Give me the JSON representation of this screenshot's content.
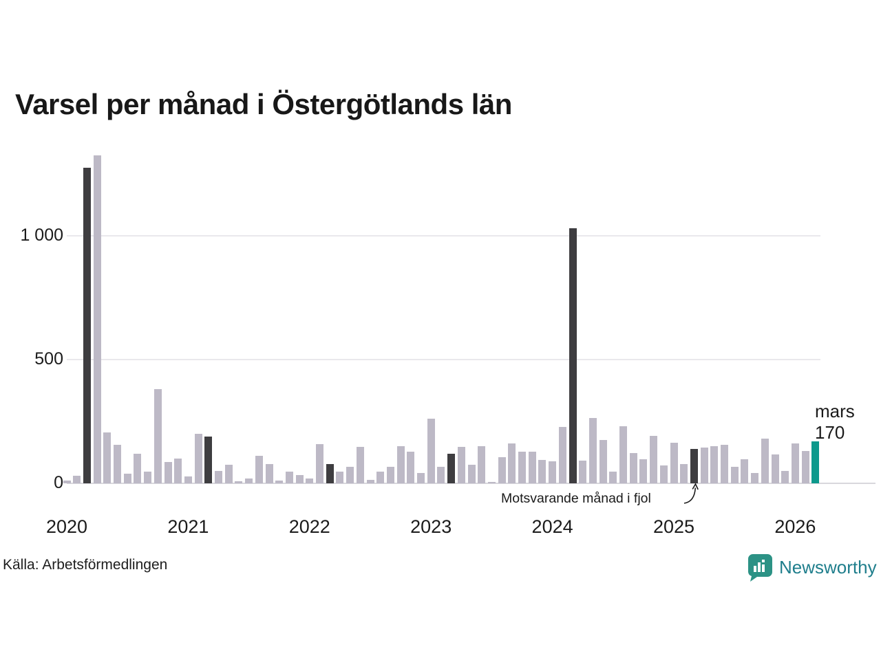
{
  "title": "Varsel per månad i Östergötlands län",
  "source": "Källa: Arbetsförmedlingen",
  "brand": {
    "name": "Newsworthy",
    "text_color": "#1f7e8c",
    "icon_color": "#2c9285",
    "icon": "bar-chart-bubble-icon"
  },
  "annotation": {
    "text": "Motsvarande månad i fjol"
  },
  "latest_label": {
    "month": "mars",
    "value": "170"
  },
  "colors": {
    "bar_default": "#bdb9c6",
    "bar_same_month_previous_years": "#3e3d40",
    "bar_latest": "#0d998c",
    "gridline": "#e9e8ec",
    "axis_line": "#d8d7dc",
    "text": "#1a1a1a"
  },
  "chart_data": {
    "type": "bar",
    "title": "Varsel per månad i Östergötlands län",
    "xlabel": "",
    "ylabel": "",
    "ylim": [
      0,
      1400
    ],
    "grid": "horizontal",
    "legend_position": "none",
    "yticks": [
      {
        "label": "0",
        "value": 0
      },
      {
        "label": "500",
        "value": 500
      },
      {
        "label": "1 000",
        "value": 1000
      }
    ],
    "year_labels": [
      "2020",
      "2021",
      "2022",
      "2023",
      "2024",
      "2025",
      "2026"
    ],
    "highlight_note": "dark bars = March of each year (same month in previous years); teal bar = latest month (mars 2026 = 170)",
    "months": [
      {
        "x": "2020-01",
        "v": 10,
        "kind": "normal"
      },
      {
        "x": "2020-02",
        "v": 30,
        "kind": "normal"
      },
      {
        "x": "2020-03",
        "v": 1275,
        "kind": "dark"
      },
      {
        "x": "2020-04",
        "v": 1325,
        "kind": "normal"
      },
      {
        "x": "2020-05",
        "v": 205,
        "kind": "normal"
      },
      {
        "x": "2020-06",
        "v": 155,
        "kind": "normal"
      },
      {
        "x": "2020-07",
        "v": 40,
        "kind": "normal"
      },
      {
        "x": "2020-08",
        "v": 120,
        "kind": "normal"
      },
      {
        "x": "2020-09",
        "v": 48,
        "kind": "normal"
      },
      {
        "x": "2020-10",
        "v": 380,
        "kind": "normal"
      },
      {
        "x": "2020-11",
        "v": 85,
        "kind": "normal"
      },
      {
        "x": "2020-12",
        "v": 100,
        "kind": "normal"
      },
      {
        "x": "2021-01",
        "v": 28,
        "kind": "normal"
      },
      {
        "x": "2021-02",
        "v": 200,
        "kind": "normal"
      },
      {
        "x": "2021-03",
        "v": 190,
        "kind": "dark"
      },
      {
        "x": "2021-04",
        "v": 50,
        "kind": "normal"
      },
      {
        "x": "2021-05",
        "v": 74,
        "kind": "normal"
      },
      {
        "x": "2021-06",
        "v": 8,
        "kind": "normal"
      },
      {
        "x": "2021-07",
        "v": 20,
        "kind": "normal"
      },
      {
        "x": "2021-08",
        "v": 112,
        "kind": "normal"
      },
      {
        "x": "2021-09",
        "v": 77,
        "kind": "normal"
      },
      {
        "x": "2021-10",
        "v": 12,
        "kind": "normal"
      },
      {
        "x": "2021-11",
        "v": 48,
        "kind": "normal"
      },
      {
        "x": "2021-12",
        "v": 34,
        "kind": "normal"
      },
      {
        "x": "2022-01",
        "v": 20,
        "kind": "normal"
      },
      {
        "x": "2022-02",
        "v": 158,
        "kind": "normal"
      },
      {
        "x": "2022-03",
        "v": 78,
        "kind": "dark"
      },
      {
        "x": "2022-04",
        "v": 48,
        "kind": "normal"
      },
      {
        "x": "2022-05",
        "v": 66,
        "kind": "normal"
      },
      {
        "x": "2022-06",
        "v": 147,
        "kind": "normal"
      },
      {
        "x": "2022-07",
        "v": 13,
        "kind": "normal"
      },
      {
        "x": "2022-08",
        "v": 46,
        "kind": "normal"
      },
      {
        "x": "2022-09",
        "v": 66,
        "kind": "normal"
      },
      {
        "x": "2022-10",
        "v": 150,
        "kind": "normal"
      },
      {
        "x": "2022-11",
        "v": 127,
        "kind": "normal"
      },
      {
        "x": "2022-12",
        "v": 43,
        "kind": "normal"
      },
      {
        "x": "2023-01",
        "v": 260,
        "kind": "normal"
      },
      {
        "x": "2023-02",
        "v": 66,
        "kind": "normal"
      },
      {
        "x": "2023-03",
        "v": 120,
        "kind": "dark"
      },
      {
        "x": "2023-04",
        "v": 146,
        "kind": "normal"
      },
      {
        "x": "2023-05",
        "v": 74,
        "kind": "normal"
      },
      {
        "x": "2023-06",
        "v": 151,
        "kind": "normal"
      },
      {
        "x": "2023-07",
        "v": 6,
        "kind": "normal"
      },
      {
        "x": "2023-08",
        "v": 106,
        "kind": "normal"
      },
      {
        "x": "2023-09",
        "v": 160,
        "kind": "normal"
      },
      {
        "x": "2023-10",
        "v": 128,
        "kind": "normal"
      },
      {
        "x": "2023-11",
        "v": 128,
        "kind": "normal"
      },
      {
        "x": "2023-12",
        "v": 95,
        "kind": "normal"
      },
      {
        "x": "2024-01",
        "v": 89,
        "kind": "normal"
      },
      {
        "x": "2024-02",
        "v": 227,
        "kind": "normal"
      },
      {
        "x": "2024-03",
        "v": 1030,
        "kind": "dark"
      },
      {
        "x": "2024-04",
        "v": 91,
        "kind": "normal"
      },
      {
        "x": "2024-05",
        "v": 264,
        "kind": "normal"
      },
      {
        "x": "2024-06",
        "v": 174,
        "kind": "normal"
      },
      {
        "x": "2024-07",
        "v": 47,
        "kind": "normal"
      },
      {
        "x": "2024-08",
        "v": 230,
        "kind": "normal"
      },
      {
        "x": "2024-09",
        "v": 121,
        "kind": "normal"
      },
      {
        "x": "2024-10",
        "v": 97,
        "kind": "normal"
      },
      {
        "x": "2024-11",
        "v": 191,
        "kind": "normal"
      },
      {
        "x": "2024-12",
        "v": 72,
        "kind": "normal"
      },
      {
        "x": "2025-01",
        "v": 165,
        "kind": "normal"
      },
      {
        "x": "2025-02",
        "v": 77,
        "kind": "normal"
      },
      {
        "x": "2025-03",
        "v": 140,
        "kind": "dark"
      },
      {
        "x": "2025-04",
        "v": 145,
        "kind": "normal"
      },
      {
        "x": "2025-05",
        "v": 150,
        "kind": "normal"
      },
      {
        "x": "2025-06",
        "v": 155,
        "kind": "normal"
      },
      {
        "x": "2025-07",
        "v": 68,
        "kind": "normal"
      },
      {
        "x": "2025-08",
        "v": 97,
        "kind": "normal"
      },
      {
        "x": "2025-09",
        "v": 42,
        "kind": "normal"
      },
      {
        "x": "2025-10",
        "v": 181,
        "kind": "normal"
      },
      {
        "x": "2025-11",
        "v": 116,
        "kind": "normal"
      },
      {
        "x": "2025-12",
        "v": 50,
        "kind": "normal"
      },
      {
        "x": "2026-01",
        "v": 162,
        "kind": "normal"
      },
      {
        "x": "2026-02",
        "v": 130,
        "kind": "normal"
      },
      {
        "x": "2026-03",
        "v": 170,
        "kind": "teal"
      }
    ]
  }
}
